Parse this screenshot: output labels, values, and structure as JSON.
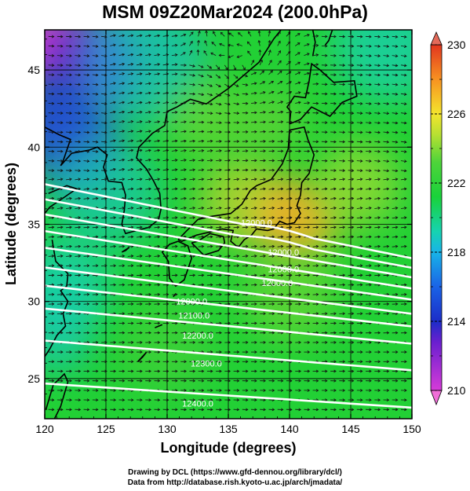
{
  "title": "MSM 09Z20Mar2024 (200.0hPa)",
  "credits": {
    "line1": "Drawing by DCL (https://www.gfd-dennou.org/library/dcl/)",
    "line2": "Data from http://database.rish.kyoto-u.ac.jp/arch/jmadata/"
  },
  "chart_data": {
    "type": "heatmap",
    "title": "MSM 09Z20Mar2024 (200.0hPa)",
    "xlabel": "Longitude (degrees)",
    "ylabel": "Latitude  (degrees)",
    "xlim": [
      120,
      150
    ],
    "ylim": [
      22.4,
      47.6
    ],
    "xticks": [
      120,
      125,
      130,
      135,
      140,
      145,
      150
    ],
    "yticks": [
      25,
      30,
      35,
      40,
      45
    ],
    "grid": true,
    "colorbar": {
      "min": 210,
      "max": 230,
      "ticks": [
        210,
        214,
        218,
        222,
        226,
        230
      ],
      "position": "right",
      "extend": "both"
    },
    "contours": [
      {
        "label": "12000.0",
        "lat_at_135E": 35.2
      },
      {
        "label": "12000.0",
        "lat_at_135E": 34.4
      },
      {
        "label": "12000.0",
        "lat_at_135E": 33.6
      },
      {
        "label": "12000.0",
        "lat_at_135E": 32.7
      },
      {
        "label": "12000.0",
        "lat_at_135E": 31.8
      },
      {
        "label": "12000.0",
        "lat_at_135E": 30.7
      },
      {
        "label": "12100.0",
        "lat_at_135E": 29.7
      },
      {
        "label": "12200.0",
        "lat_at_135E": 28.4
      },
      {
        "label": "12300.0",
        "lat_at_135E": 26.5
      },
      {
        "label": "12400.0",
        "lat_at_135E": 23.9
      }
    ],
    "contour_labels": [
      {
        "text": "12000.0",
        "lon": 137.3,
        "lat": 35.1
      },
      {
        "text": "12000.0",
        "lon": 139.5,
        "lat": 33.2
      },
      {
        "text": "12000.0",
        "lon": 139.5,
        "lat": 32.1
      },
      {
        "text": "12000.0",
        "lon": 139.0,
        "lat": 31.2
      },
      {
        "text": "12000.0",
        "lon": 132.0,
        "lat": 30.0
      },
      {
        "text": "12100.0",
        "lon": 132.2,
        "lat": 29.1
      },
      {
        "text": "12200.0",
        "lon": 132.5,
        "lat": 27.8
      },
      {
        "text": "12300.0",
        "lon": 133.2,
        "lat": 26.0
      },
      {
        "text": "12400.0",
        "lon": 132.5,
        "lat": 23.4
      }
    ],
    "wind_vortex": {
      "lon": 136.5,
      "lat": 45.5
    }
  }
}
